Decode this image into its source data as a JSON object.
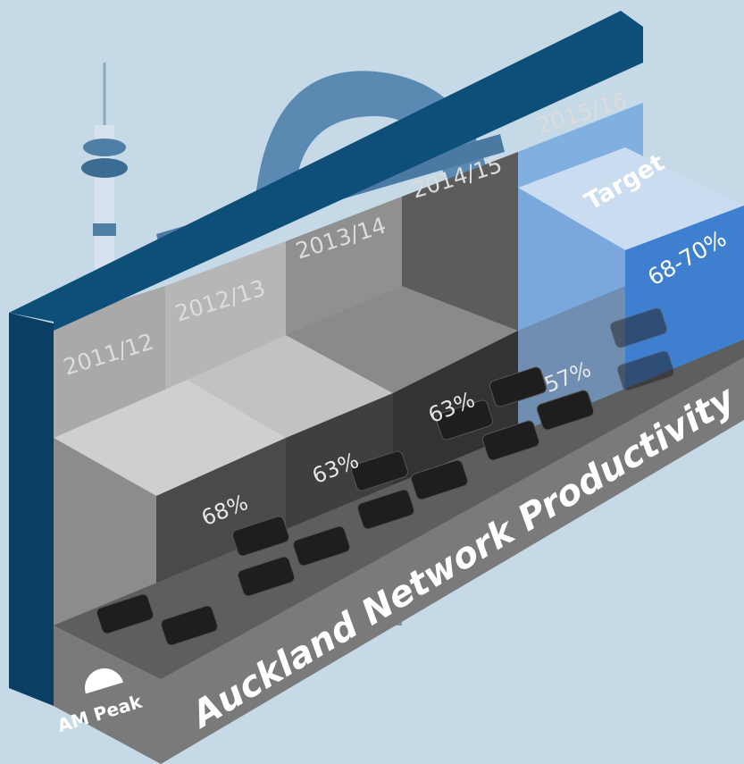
{
  "title": "Auckland Network Productivity",
  "badge": "AM Peak",
  "target_label": "Target",
  "periods": [
    {
      "year": "2011/12",
      "value": "68%"
    },
    {
      "year": "2012/13",
      "value": "63%"
    },
    {
      "year": "2013/14",
      "value": "63%"
    },
    {
      "year": "2014/15",
      "value": "57%"
    },
    {
      "year": "2015/16",
      "value": "68-70%"
    }
  ]
}
